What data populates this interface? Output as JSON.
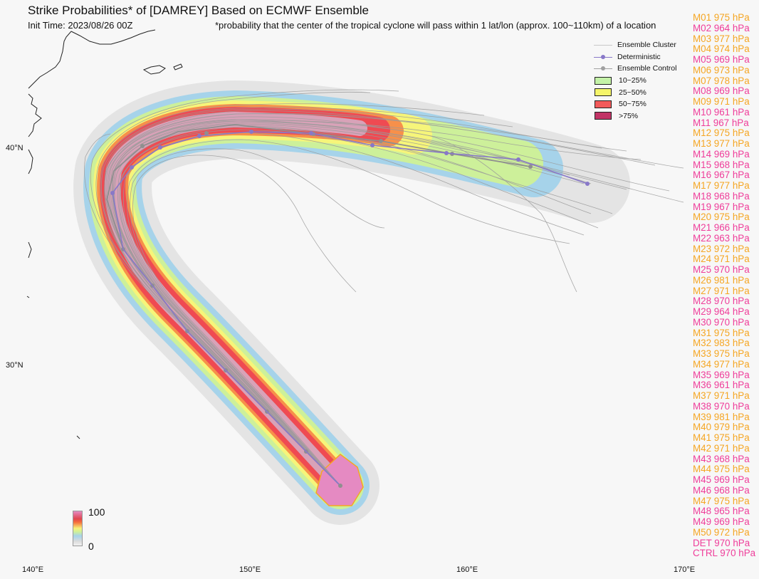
{
  "header": {
    "title": "Strike Probabilities* of [DAMREY] Based on ECMWF Ensemble",
    "init_time": "Init Time: 2023/08/26 00Z",
    "footnote": "*probability that the center of the tropical cyclone will pass within 1 lat/lon (approx. 100~110km) of a location"
  },
  "axes": {
    "lat_labels": [
      "40°N",
      "30°N"
    ],
    "lon_labels": [
      "140°E",
      "150°E",
      "160°E",
      "170°E"
    ]
  },
  "legend": {
    "items": [
      {
        "label": "Ensemble Cluster",
        "kind": "line",
        "color": "#c8c8c8"
      },
      {
        "label": "Deterministic",
        "kind": "line-dot",
        "color": "#8878c8"
      },
      {
        "label": "Ensemble Control",
        "kind": "line-dot",
        "color": "#a0a0a0"
      },
      {
        "label": "10~25%",
        "kind": "box",
        "color": "#c4f2a8"
      },
      {
        "label": "25~50%",
        "kind": "box",
        "color": "#f5f56a"
      },
      {
        "label": "50~75%",
        "kind": "box",
        "color": "#f25a5a"
      },
      {
        "label": ">75%",
        "kind": "box",
        "color": "#c23466"
      }
    ]
  },
  "colorbar": {
    "max_label": "100",
    "min_label": "0"
  },
  "colors": {
    "strong": "#ef3d9a",
    "weak": "#f5a623",
    "deterministic": "#8878c8",
    "control": "#8f8f8f"
  },
  "members": [
    {
      "label": "M01 975 hPa",
      "strength": "weak"
    },
    {
      "label": "M02 964 hPa",
      "strength": "strong"
    },
    {
      "label": "M03 977 hPa",
      "strength": "weak"
    },
    {
      "label": "M04 974 hPa",
      "strength": "weak"
    },
    {
      "label": "M05 969 hPa",
      "strength": "strong"
    },
    {
      "label": "M06 973 hPa",
      "strength": "weak"
    },
    {
      "label": "M07 978 hPa",
      "strength": "weak"
    },
    {
      "label": "M08 969 hPa",
      "strength": "strong"
    },
    {
      "label": "M09 971 hPa",
      "strength": "weak"
    },
    {
      "label": "M10 961 hPa",
      "strength": "strong"
    },
    {
      "label": "M11 967 hPa",
      "strength": "strong"
    },
    {
      "label": "M12 975 hPa",
      "strength": "weak"
    },
    {
      "label": "M13 977 hPa",
      "strength": "weak"
    },
    {
      "label": "M14 969 hPa",
      "strength": "strong"
    },
    {
      "label": "M15 968 hPa",
      "strength": "strong"
    },
    {
      "label": "M16 967 hPa",
      "strength": "strong"
    },
    {
      "label": "M17 977 hPa",
      "strength": "weak"
    },
    {
      "label": "M18 968 hPa",
      "strength": "strong"
    },
    {
      "label": "M19 967 hPa",
      "strength": "strong"
    },
    {
      "label": "M20 975 hPa",
      "strength": "weak"
    },
    {
      "label": "M21 966 hPa",
      "strength": "strong"
    },
    {
      "label": "M22 963 hPa",
      "strength": "strong"
    },
    {
      "label": "M23 972 hPa",
      "strength": "weak"
    },
    {
      "label": "M24 971 hPa",
      "strength": "weak"
    },
    {
      "label": "M25 970 hPa",
      "strength": "strong"
    },
    {
      "label": "M26 981 hPa",
      "strength": "weak"
    },
    {
      "label": "M27 971 hPa",
      "strength": "weak"
    },
    {
      "label": "M28 970 hPa",
      "strength": "strong"
    },
    {
      "label": "M29 964 hPa",
      "strength": "strong"
    },
    {
      "label": "M30 970 hPa",
      "strength": "strong"
    },
    {
      "label": "M31 975 hPa",
      "strength": "weak"
    },
    {
      "label": "M32 983 hPa",
      "strength": "weak"
    },
    {
      "label": "M33 975 hPa",
      "strength": "weak"
    },
    {
      "label": "M34 977 hPa",
      "strength": "weak"
    },
    {
      "label": "M35 969 hPa",
      "strength": "strong"
    },
    {
      "label": "M36 961 hPa",
      "strength": "strong"
    },
    {
      "label": "M37 971 hPa",
      "strength": "weak"
    },
    {
      "label": "M38 970 hPa",
      "strength": "strong"
    },
    {
      "label": "M39 981 hPa",
      "strength": "weak"
    },
    {
      "label": "M40 979 hPa",
      "strength": "weak"
    },
    {
      "label": "M41 975 hPa",
      "strength": "weak"
    },
    {
      "label": "M42 971 hPa",
      "strength": "weak"
    },
    {
      "label": "M43 968 hPa",
      "strength": "strong"
    },
    {
      "label": "M44 975 hPa",
      "strength": "weak"
    },
    {
      "label": "M45 969 hPa",
      "strength": "strong"
    },
    {
      "label": "M46 968 hPa",
      "strength": "strong"
    },
    {
      "label": "M47 975 hPa",
      "strength": "weak"
    },
    {
      "label": "M48 965 hPa",
      "strength": "strong"
    },
    {
      "label": "M49 969 hPa",
      "strength": "strong"
    },
    {
      "label": "M50 972 hPa",
      "strength": "weak"
    },
    {
      "label": "DET 970 hPa",
      "strength": "strong"
    },
    {
      "label": "CTRL 970 hPa",
      "strength": "strong"
    }
  ]
}
